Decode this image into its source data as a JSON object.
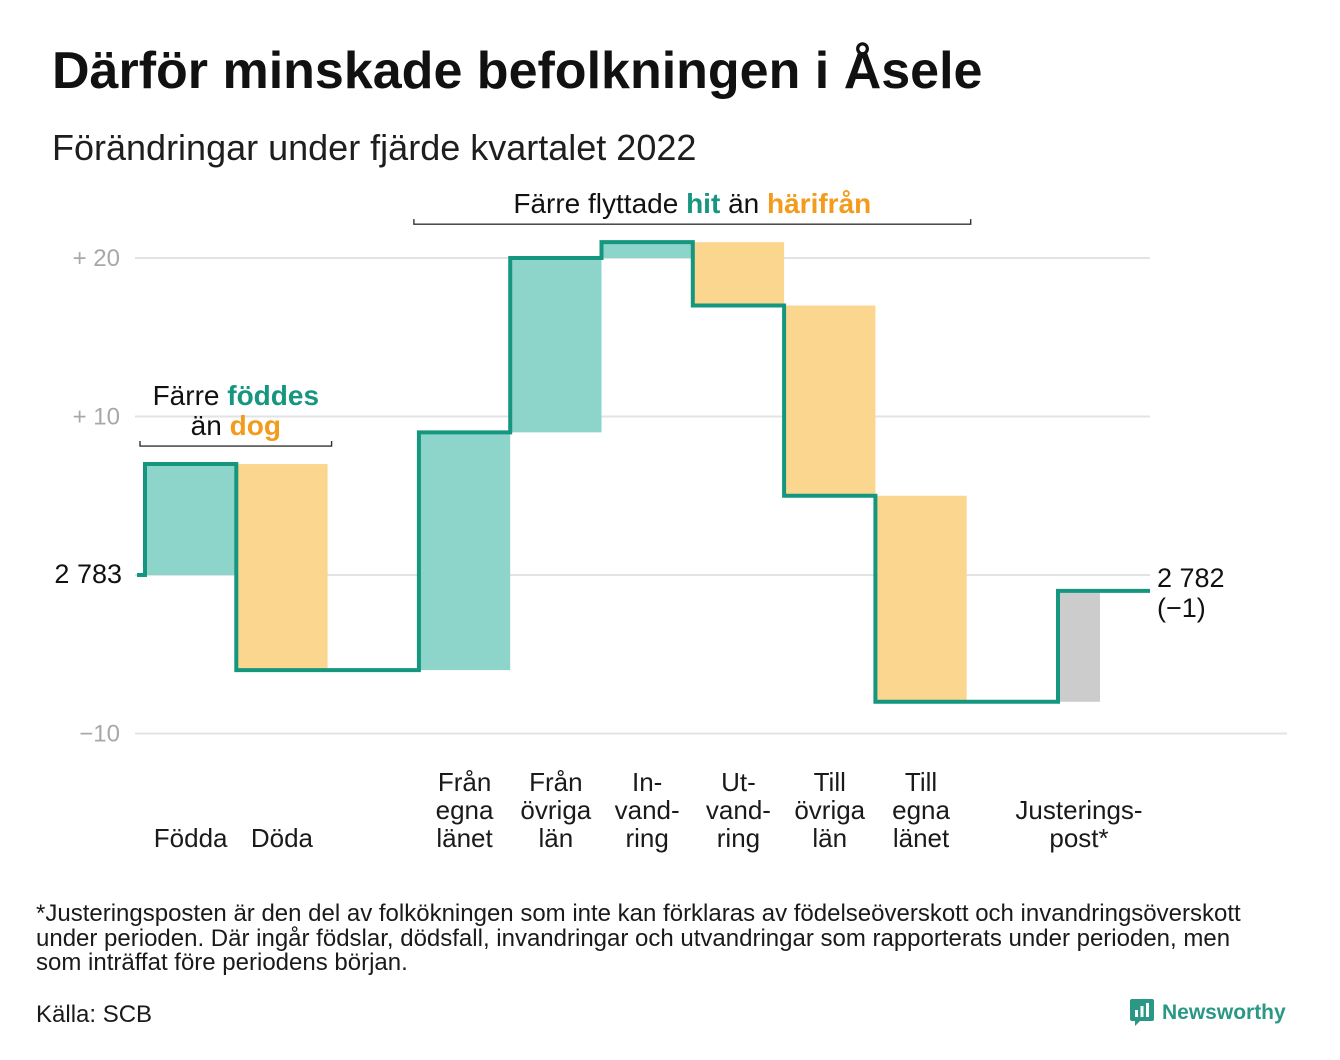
{
  "chart_data": {
    "type": "bar",
    "waterfall": true,
    "title": "Därför minskade befolkningen i Åsele",
    "subtitle": "Förändringar under fjärde kvartalet 2022",
    "start_value": 2783,
    "end_value": 2782,
    "end_labels": [
      "2 782",
      "(−1)"
    ],
    "y_ticks": [
      {
        "value": 20,
        "label": "+ 20"
      },
      {
        "value": 10,
        "label": "+ 10"
      },
      {
        "value": 0,
        "label": "2 783"
      },
      {
        "value": -10,
        "label": "−10"
      }
    ],
    "ylim": [
      -10,
      21
    ],
    "grid": true,
    "line_color": "#14967f",
    "categories": [
      {
        "lines": [
          "Födda"
        ],
        "value": 7,
        "color": "#8dd4ca"
      },
      {
        "lines": [
          "Döda"
        ],
        "value": -13,
        "color": "#fbd68f"
      },
      {
        "lines": [
          "Från",
          "egna",
          "länet"
        ],
        "value": 15,
        "color": "#8dd4ca"
      },
      {
        "lines": [
          "Från",
          "övriga",
          "län"
        ],
        "value": 11,
        "color": "#8dd4ca"
      },
      {
        "lines": [
          "In-",
          "vand-",
          "ring"
        ],
        "value": 1,
        "color": "#8dd4ca"
      },
      {
        "lines": [
          "Ut-",
          "vand-",
          "ring"
        ],
        "value": -4,
        "color": "#fbd68f"
      },
      {
        "lines": [
          "Till",
          "övriga",
          "län"
        ],
        "value": -12,
        "color": "#fbd68f"
      },
      {
        "lines": [
          "Till",
          "egna",
          "länet"
        ],
        "value": -13,
        "color": "#fbd68f"
      },
      {
        "lines": [
          "Justerings-",
          "post*"
        ],
        "value": 7,
        "color": "#cccccc",
        "adjustment": true
      }
    ],
    "annotations": [
      {
        "span": [
          0,
          1
        ],
        "lines": [
          [
            {
              "text": "Färre "
            },
            {
              "text": "föddes",
              "color": "#17967f",
              "bold": true
            }
          ],
          [
            {
              "text": "än "
            },
            {
              "text": "dog",
              "color": "#f29b1c",
              "bold": true
            }
          ]
        ]
      },
      {
        "span": [
          2,
          7
        ],
        "lines": [
          [
            {
              "text": "Färre flyttade "
            },
            {
              "text": "hit",
              "color": "#17967f",
              "bold": true
            },
            {
              "text": " än "
            },
            {
              "text": "härifrån",
              "color": "#f29b1c",
              "bold": true
            }
          ]
        ]
      }
    ]
  },
  "footnote_lines": [
    "*Justeringsposten är den del av folkökningen som inte kan förklaras av födelseöverskott och invandringsöverskott",
    "under perioden. Där ingår födslar, dödsfall, invandringar och utvandringar som rapporterats under perioden, men",
    "som inträffat före periodens början."
  ],
  "source": "Källa: SCB",
  "brand": {
    "name": "Newsworthy",
    "icon": "chat-bar-chart-icon",
    "color": "#2a9885"
  }
}
